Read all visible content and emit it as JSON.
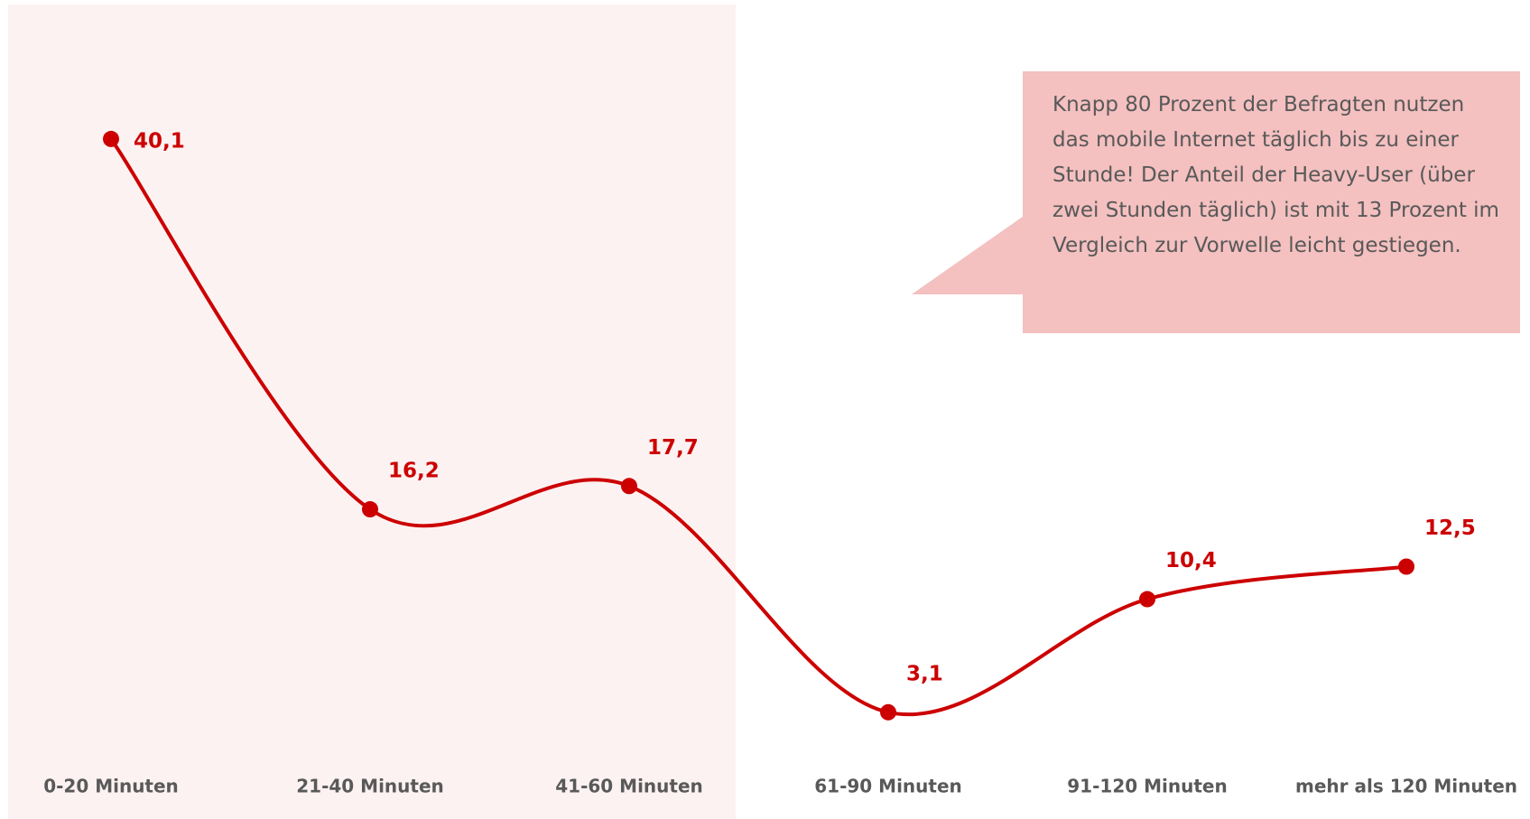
{
  "chart_data": {
    "type": "line",
    "categories": [
      "0-20 Minuten",
      "21-40 Minuten",
      "41-60 Minuten",
      "61-90 Minuten",
      "91-120 Minuten",
      "mehr als 120 Minuten"
    ],
    "series": [
      {
        "color": "#cc0000",
        "values": [
          40.1,
          16.2,
          17.7,
          3.1,
          10.4,
          12.5
        ],
        "value_labels": [
          "40,1",
          "16,2",
          "17,7",
          "3,1",
          "10,4",
          "12,5"
        ]
      }
    ],
    "annotations": [
      "Knapp 80 Prozent der Befragten nutzen das mobile Internet täglich bis zu einer Stunde! Der Anteil der Heavy-User (über zwei Stunden täglich) ist mit 13 Prozent im Vergleich zur Vorwelle leicht gestiegen."
    ]
  }
}
